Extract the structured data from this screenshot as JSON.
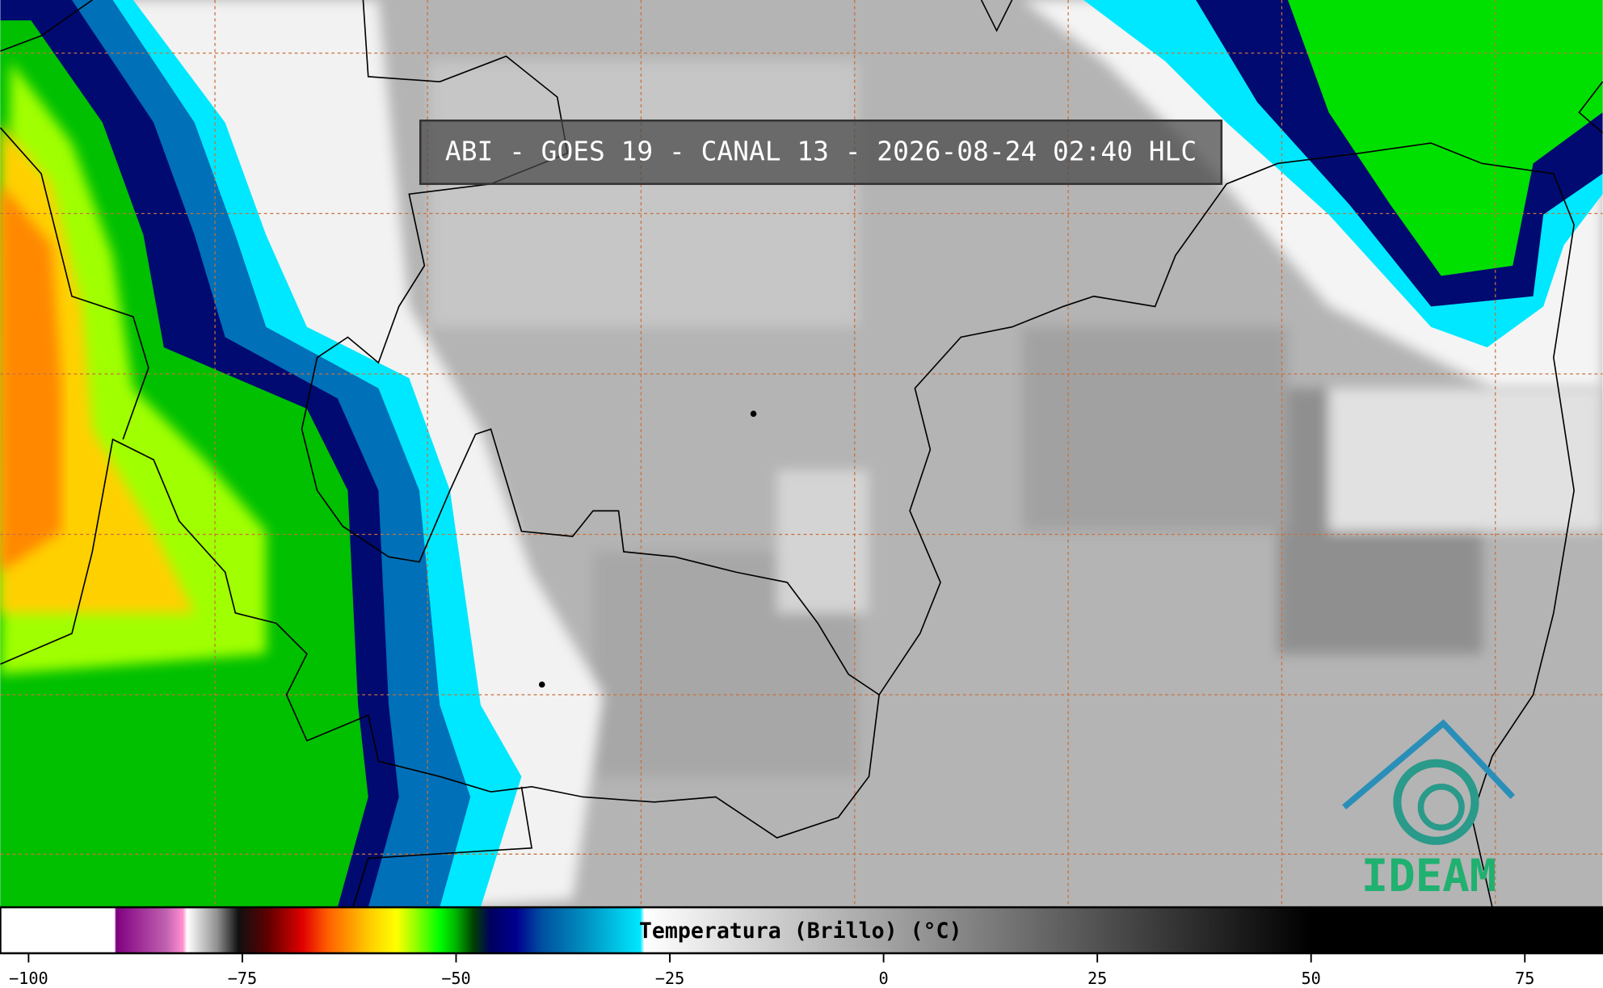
{
  "header": {
    "title": "ABI - GOES 19 - CANAL 13 - 2026-08-24 02:40 HLC"
  },
  "colorbar": {
    "label": "Temperatura (Brillo) (°C)",
    "xlim": [
      -103.3,
      84.1
    ],
    "xticks": [
      {
        "value": -100,
        "label": "−100"
      },
      {
        "value": -75,
        "label": "−75"
      },
      {
        "value": -50,
        "label": "−50"
      },
      {
        "value": -25,
        "label": "−25"
      },
      0,
      25,
      50,
      75
    ]
  },
  "logo": {
    "text": "IDEAM"
  }
}
